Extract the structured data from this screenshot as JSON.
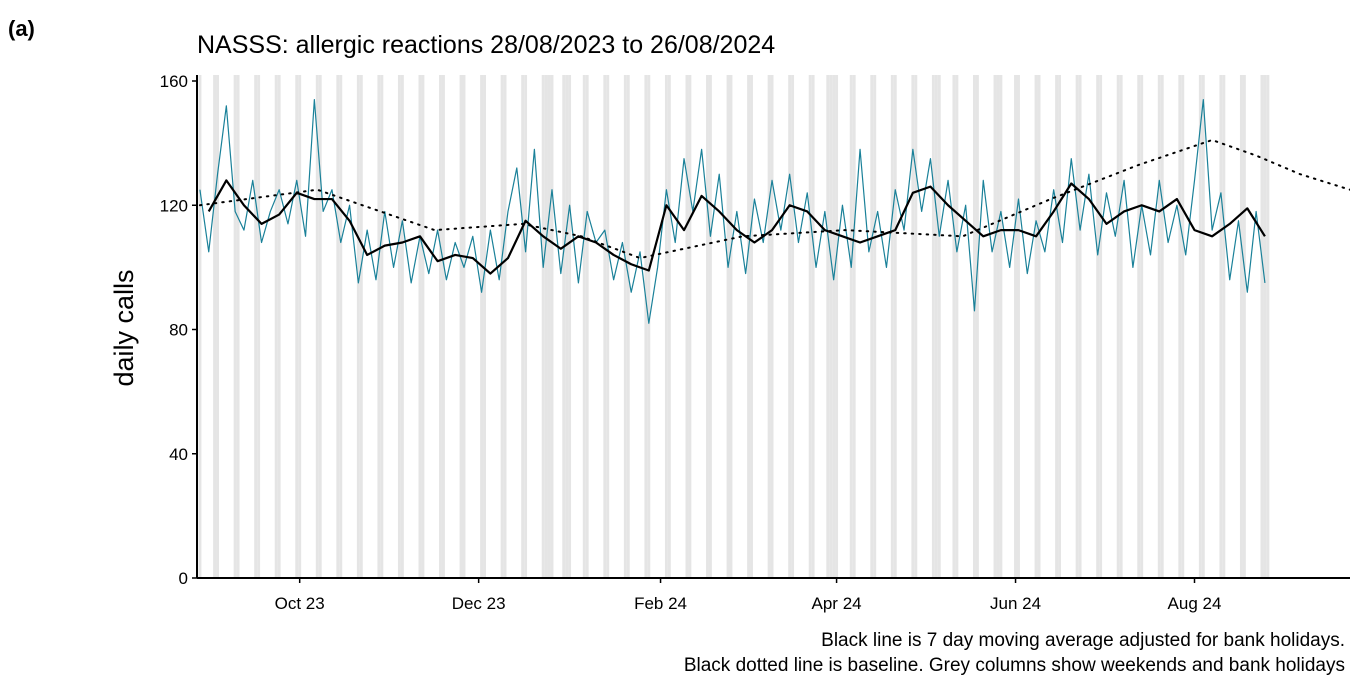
{
  "panel_label": "(a)",
  "chart_data": {
    "type": "line",
    "title": "NASSS: allergic reactions 28/08/2023 to 26/08/2024",
    "ylabel": "daily calls",
    "notes": [
      "Black line is 7 day moving average adjusted for bank holidays.",
      "Black dotted line is baseline. Grey columns show weekends and bank holidays"
    ],
    "xlim": [
      -1,
      392
    ],
    "xticks": [
      {
        "value": 34,
        "label": "Oct 23"
      },
      {
        "value": 95,
        "label": "Dec 23"
      },
      {
        "value": 157,
        "label": "Feb 24"
      },
      {
        "value": 217,
        "label": "Apr 24"
      },
      {
        "value": 278,
        "label": "Jun 24"
      },
      {
        "value": 339,
        "label": "Aug 24"
      }
    ],
    "ylim": [
      0,
      160
    ],
    "yticks": [
      0,
      40,
      80,
      120,
      160
    ],
    "shade_color": "#e5e5e5",
    "shaded_days": [
      0,
      119,
      120,
      126,
      214,
      217,
      252,
      273,
      364,
      5,
      6,
      12,
      13,
      19,
      20,
      26,
      27,
      33,
      34,
      40,
      41,
      47,
      48,
      54,
      55,
      61,
      62,
      68,
      69,
      75,
      76,
      82,
      83,
      89,
      90,
      96,
      97,
      103,
      104,
      110,
      111,
      117,
      118,
      124,
      125,
      131,
      132,
      138,
      139,
      145,
      146,
      152,
      153,
      159,
      160,
      166,
      167,
      173,
      174,
      180,
      181,
      187,
      188,
      194,
      195,
      201,
      202,
      208,
      209,
      215,
      216,
      222,
      223,
      229,
      230,
      236,
      237,
      243,
      244,
      250,
      251,
      257,
      258,
      264,
      265,
      271,
      272,
      278,
      279,
      285,
      286,
      292,
      293,
      299,
      300,
      306,
      307,
      313,
      314,
      320,
      321,
      327,
      328,
      334,
      335,
      341,
      342,
      348,
      349,
      355,
      356,
      362,
      363
    ],
    "series": [
      {
        "color": "#1a8199",
        "style": "solid",
        "width": 1.2,
        "x": [
          0,
          3,
          6,
          9,
          12,
          15,
          18,
          21,
          24,
          27,
          30,
          33,
          36,
          39,
          42,
          45,
          48,
          51,
          54,
          57,
          60,
          63,
          66,
          69,
          72,
          75,
          78,
          81,
          84,
          87,
          90,
          93,
          96,
          99,
          102,
          105,
          108,
          111,
          114,
          117,
          120,
          123,
          126,
          129,
          132,
          135,
          138,
          141,
          144,
          147,
          150,
          153,
          156,
          159,
          162,
          165,
          168,
          171,
          174,
          177,
          180,
          183,
          186,
          189,
          192,
          195,
          198,
          201,
          204,
          207,
          210,
          213,
          216,
          219,
          222,
          225,
          228,
          231,
          234,
          237,
          240,
          243,
          246,
          249,
          252,
          255,
          258,
          261,
          264,
          267,
          270,
          273,
          276,
          279,
          282,
          285,
          288,
          291,
          294,
          297,
          300,
          303,
          306,
          309,
          312,
          315,
          318,
          321,
          324,
          327,
          330,
          333,
          336,
          339,
          342,
          345,
          348,
          351,
          354,
          357,
          360,
          363
        ],
        "values": [
          125,
          105,
          130,
          152,
          118,
          112,
          128,
          108,
          118,
          125,
          114,
          128,
          110,
          154,
          118,
          125,
          108,
          120,
          95,
          112,
          96,
          118,
          100,
          115,
          95,
          110,
          98,
          112,
          96,
          108,
          100,
          110,
          92,
          112,
          96,
          118,
          132,
          105,
          138,
          100,
          125,
          98,
          120,
          95,
          118,
          108,
          112,
          96,
          108,
          92,
          105,
          82,
          100,
          125,
          108,
          135,
          118,
          138,
          110,
          130,
          100,
          118,
          98,
          122,
          108,
          128,
          112,
          130,
          108,
          124,
          100,
          118,
          96,
          120,
          100,
          138,
          105,
          118,
          100,
          125,
          112,
          138,
          118,
          135,
          110,
          128,
          105,
          120,
          86,
          128,
          105,
          118,
          100,
          122,
          98,
          115,
          105,
          125,
          108,
          135,
          112,
          130,
          104,
          124,
          110,
          128,
          100,
          120,
          104,
          128,
          108,
          120,
          104,
          128,
          154,
          112,
          124,
          96,
          115,
          92,
          118,
          95
        ]
      },
      {
        "color": "#000000",
        "style": "solid",
        "width": 2.2,
        "x": [
          3,
          9,
          15,
          21,
          27,
          33,
          39,
          45,
          51,
          57,
          63,
          69,
          75,
          81,
          87,
          93,
          99,
          105,
          111,
          117,
          123,
          129,
          135,
          141,
          147,
          153,
          159,
          165,
          171,
          177,
          183,
          189,
          195,
          201,
          207,
          213,
          219,
          225,
          231,
          237,
          243,
          249,
          255,
          261,
          267,
          273,
          279,
          285,
          291,
          297,
          303,
          309,
          315,
          321,
          327,
          333,
          339,
          345,
          351,
          357,
          363
        ],
        "values": [
          118,
          128,
          120,
          114,
          117,
          124,
          122,
          122,
          115,
          104,
          107,
          108,
          110,
          102,
          104,
          103,
          98,
          103,
          115,
          110,
          106,
          110,
          108,
          104,
          101,
          99,
          120,
          112,
          123,
          118,
          112,
          108,
          112,
          120,
          118,
          112,
          110,
          108,
          110,
          112,
          124,
          126,
          120,
          115,
          110,
          112,
          112,
          110,
          118,
          127,
          122,
          114,
          118,
          120,
          118,
          122,
          112,
          110,
          114,
          119,
          110
        ]
      },
      {
        "color": "#000000",
        "style": "dotted",
        "width": 2,
        "x": [
          0,
          40,
          80,
          110,
          130,
          150,
          160,
          185,
          220,
          260,
          290,
          320,
          345,
          360,
          375,
          392
        ],
        "values": [
          120,
          125,
          112,
          114,
          110,
          103,
          105,
          110,
          112,
          110,
          122,
          133,
          141,
          136,
          130,
          125
        ]
      }
    ]
  }
}
